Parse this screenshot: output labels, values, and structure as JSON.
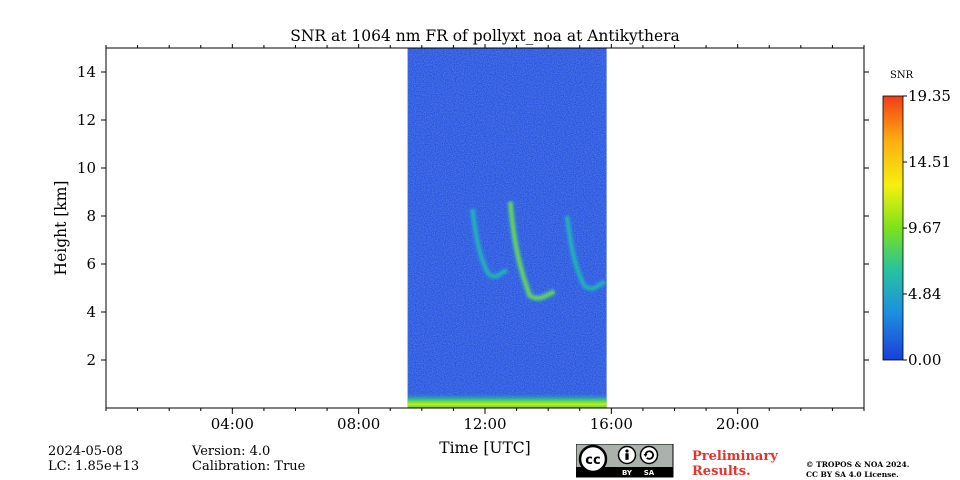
{
  "chart_data": {
    "type": "heatmap",
    "title": "SNR at 1064 nm FR of pollyxt_noa at Antikythera",
    "xlabel": "Time [UTC]",
    "ylabel": "Height [km]",
    "xlim_hours": [
      0,
      24
    ],
    "ylim_km": [
      0,
      15
    ],
    "x_ticks": [
      {
        "value": 4,
        "label": "04:00"
      },
      {
        "value": 8,
        "label": "08:00"
      },
      {
        "value": 12,
        "label": "12:00"
      },
      {
        "value": 16,
        "label": "16:00"
      },
      {
        "value": 20,
        "label": "20:00"
      }
    ],
    "y_ticks": [
      {
        "value": 2,
        "label": "2"
      },
      {
        "value": 4,
        "label": "4"
      },
      {
        "value": 6,
        "label": "6"
      },
      {
        "value": 8,
        "label": "8"
      },
      {
        "value": 10,
        "label": "10"
      },
      {
        "value": 12,
        "label": "12"
      },
      {
        "value": 14,
        "label": "14"
      }
    ],
    "data_time_range_hours": [
      9.55,
      15.85
    ],
    "background_snr": 1.0,
    "near_surface_layer": {
      "height_km": [
        0,
        0.6
      ],
      "snr_range": [
        8,
        12
      ]
    },
    "cloud_features": [
      {
        "name": "cirrus-fall-streak-1",
        "time_start_h": 11.6,
        "time_end_h": 12.7,
        "height_top_km": 8.3,
        "height_bottom_km": 5.5,
        "snr": 7
      },
      {
        "name": "cirrus-fall-streak-2",
        "time_start_h": 12.8,
        "time_end_h": 14.2,
        "height_top_km": 8.6,
        "height_bottom_km": 4.6,
        "snr": 9
      },
      {
        "name": "cirrus-fall-streak-3",
        "time_start_h": 14.6,
        "time_end_h": 15.8,
        "height_top_km": 8.0,
        "height_bottom_km": 5.0,
        "snr": 8
      }
    ],
    "colorbar": {
      "label": "SNR",
      "min": 0.0,
      "max": 19.35,
      "ticks": [
        "0.00",
        "4.84",
        "9.67",
        "14.51",
        "19.35"
      ],
      "colors": [
        "#1a3fd8",
        "#1e8fe0",
        "#26c2a0",
        "#7de21a",
        "#f5f00f",
        "#fcae10",
        "#f23c16"
      ]
    }
  },
  "footer": {
    "date": "2024-05-08",
    "lc": "LC: 1.85e+13",
    "version": "Version: 4.0",
    "calibration": "Calibration: True",
    "preliminary_line1": "Preliminary",
    "preliminary_line2": "Results.",
    "copyright_line1": "© TROPOS & NOA 2024.",
    "copyright_line2": "CC BY SA 4.0 License.",
    "license_badge": {
      "cc": "cc",
      "by": "BY",
      "sa": "SA"
    }
  }
}
